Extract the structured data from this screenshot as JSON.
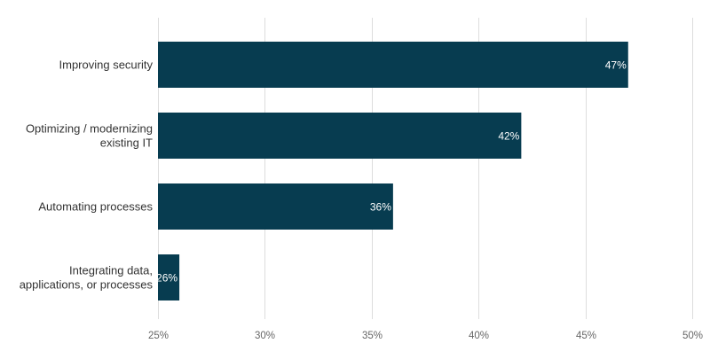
{
  "chart_data": {
    "type": "bar",
    "orientation": "horizontal",
    "title": "",
    "xlabel": "",
    "ylabel": "",
    "categories": [
      "Improving security",
      "Optimizing / modernizing existing IT",
      "Automating processes",
      "Integrating data, applications, or processes"
    ],
    "category_lines": [
      [
        "Improving security"
      ],
      [
        "Optimizing / modernizing",
        "existing IT"
      ],
      [
        "Automating processes"
      ],
      [
        "Integrating data,",
        "applications, or processes"
      ]
    ],
    "values": [
      47,
      42,
      36,
      26
    ],
    "value_labels": [
      "47%",
      "42%",
      "36%",
      "26%"
    ],
    "xlim": [
      25,
      50
    ],
    "x_ticks": [
      25,
      30,
      35,
      40,
      45,
      50
    ],
    "x_tick_labels": [
      "25%",
      "30%",
      "35%",
      "40%",
      "45%",
      "50%"
    ],
    "grid": "vertical",
    "legend": "none",
    "colors": {
      "bar": "#073c50",
      "grid": "#dddddd",
      "axis_text": "#666666",
      "category_text": "#333333",
      "data_label_text": "#ffffff"
    }
  }
}
